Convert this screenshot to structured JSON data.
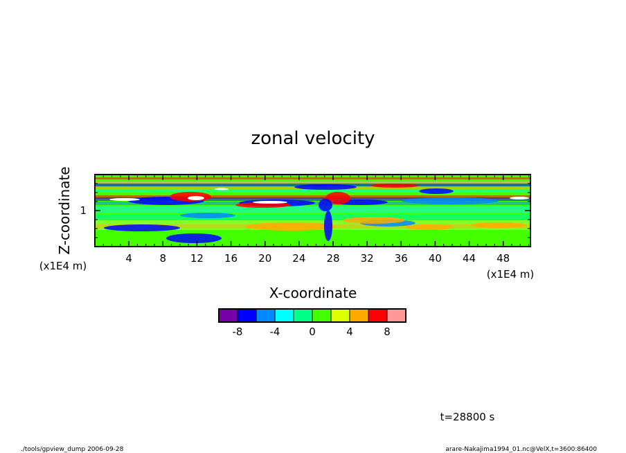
{
  "chart_data": {
    "type": "heatmap",
    "title": "zonal velocity",
    "xlabel": "X-coordinate",
    "ylabel": "Z-coordinate",
    "x_units": "(x1E4 m)",
    "z_units": "(x1E4 m)",
    "x_ticks": [
      "4",
      "8",
      "12",
      "16",
      "20",
      "24",
      "28",
      "32",
      "36",
      "40",
      "44",
      "48"
    ],
    "x_tick_values": [
      4,
      8,
      12,
      16,
      20,
      24,
      28,
      32,
      36,
      40,
      44,
      48
    ],
    "z_ticks": [
      "1"
    ],
    "z_tick_values": [
      1
    ],
    "xlim": [
      0,
      51.2
    ],
    "zlim": [
      0.2,
      1.8
    ],
    "colorbar": {
      "tick_labels": [
        "-8",
        "-4",
        "0",
        "4",
        "8"
      ],
      "tick_values": [
        -8,
        -4,
        0,
        4,
        8
      ],
      "levels": [
        -10,
        -8,
        -6,
        -4,
        -2,
        0,
        2,
        4,
        6,
        8,
        10
      ],
      "colors": [
        "#7700aa",
        "#0000ff",
        "#0088ff",
        "#00ffff",
        "#00ff88",
        "#44ff00",
        "#ddff00",
        "#ffaa00",
        "#ff0000",
        "#ff9999"
      ],
      "under_color": "#ffffff",
      "over_color": "#ffffff"
    },
    "background_color": "#44ff00"
  },
  "annotations": {
    "time": "t=28800 s",
    "footer_left": "./tools/gpview_dump  2006-09-28",
    "footer_right": "arare-Nakajima1994_01.nc@VelX,t=3600:86400"
  }
}
